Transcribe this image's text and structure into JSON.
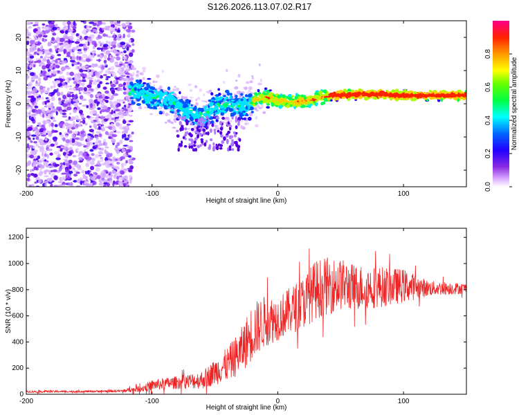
{
  "title": "S126.2026.113.07.02.R17",
  "chart_data": [
    {
      "type": "heatmap",
      "title": "S126.2026.113.07.02.R17",
      "xlabel": "Height of straight line (km)",
      "ylabel": "Frequency (Hz)",
      "xlim": [
        -200,
        150
      ],
      "ylim": [
        -25,
        25
      ],
      "xticks": [
        -200,
        -100,
        0,
        100
      ],
      "yticks": [
        -20,
        -10,
        0,
        10,
        20
      ],
      "colorbar": {
        "label": "Normalized spectral amplitude",
        "range": [
          0.0,
          1.0
        ],
        "ticks": [
          "0.0",
          "0.2",
          "0.4",
          "0.6",
          "0.8"
        ],
        "colors": [
          "#ffffff",
          "#cc88ff",
          "#6600ff",
          "#0000ff",
          "#00ffff",
          "#00ff00",
          "#ffff00",
          "#ff8800",
          "#ff0000",
          "#ff0088"
        ]
      },
      "ridge": {
        "description_free": true,
        "x": [
          -115,
          -100,
          -85,
          -75,
          -60,
          -50,
          -40,
          -30,
          -20,
          -10,
          0,
          10,
          20,
          30,
          40,
          60,
          80,
          100,
          120,
          150
        ],
        "freq": [
          4,
          2,
          1,
          -2,
          -4,
          -1,
          0,
          -1,
          1,
          2,
          1,
          0.5,
          0.8,
          1.5,
          2.5,
          2.8,
          2.8,
          2.5,
          2.5,
          2.5
        ]
      }
    },
    {
      "type": "line",
      "xlabel": "Height of straight line (km)",
      "ylabel": "SNR (10 * v/v)",
      "xlim": [
        -200,
        150
      ],
      "ylim": [
        0,
        1270
      ],
      "xticks": [
        -200,
        -100,
        0,
        100
      ],
      "yticks": [
        0,
        200,
        400,
        600,
        800,
        1000,
        1200
      ],
      "color": "#ee2222",
      "envelope": {
        "x": [
          -200,
          -150,
          -125,
          -110,
          -100,
          -80,
          -60,
          -50,
          -40,
          -30,
          -20,
          -10,
          0,
          10,
          20,
          30,
          40,
          50,
          60,
          80,
          100,
          120,
          150
        ],
        "mean": [
          20,
          22,
          25,
          40,
          70,
          90,
          110,
          170,
          230,
          320,
          480,
          560,
          580,
          640,
          700,
          800,
          830,
          840,
          820,
          820,
          830,
          810,
          810
        ],
        "spread": [
          8,
          8,
          10,
          25,
          40,
          50,
          70,
          100,
          130,
          170,
          220,
          200,
          170,
          180,
          200,
          230,
          220,
          200,
          180,
          160,
          130,
          60,
          40
        ]
      }
    }
  ]
}
